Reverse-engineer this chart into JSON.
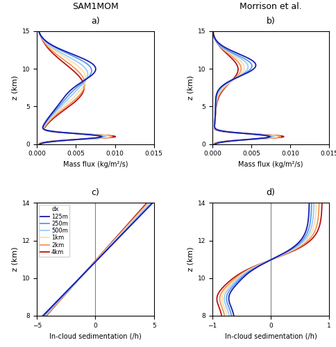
{
  "title_a": "SAM1MOM",
  "title_b": "Morrison et al.",
  "label_a": "a)",
  "label_b": "b)",
  "label_c": "c)",
  "label_d": "d)",
  "xlabel_ab": "Mass flux (kg/m²/s)",
  "xlabel_cd": "In-cloud sedimentation (/h)",
  "ylabel": "z (km)",
  "xlim_ab": [
    0.0,
    0.015
  ],
  "xticks_ab": [
    0.0,
    0.005,
    0.01,
    0.015
  ],
  "ylim_ab": [
    0,
    15
  ],
  "yticks_ab": [
    0,
    5,
    10,
    15
  ],
  "xlim_c": [
    -5,
    5
  ],
  "xticks_c": [
    -5,
    0,
    5
  ],
  "xlim_d": [
    -1,
    1
  ],
  "xticks_d": [
    -1,
    0,
    1
  ],
  "ylim_cd": [
    8,
    14
  ],
  "yticks_cd": [
    8,
    10,
    12,
    14
  ],
  "colors": {
    "125m": "#1a1aaa",
    "250m": "#5599ee",
    "500m": "#99ccff",
    "1km": "#ffddaa",
    "2km": "#ee9955",
    "4km": "#bb1111"
  },
  "linewidth": 1.3,
  "background_color": "#ffffff"
}
